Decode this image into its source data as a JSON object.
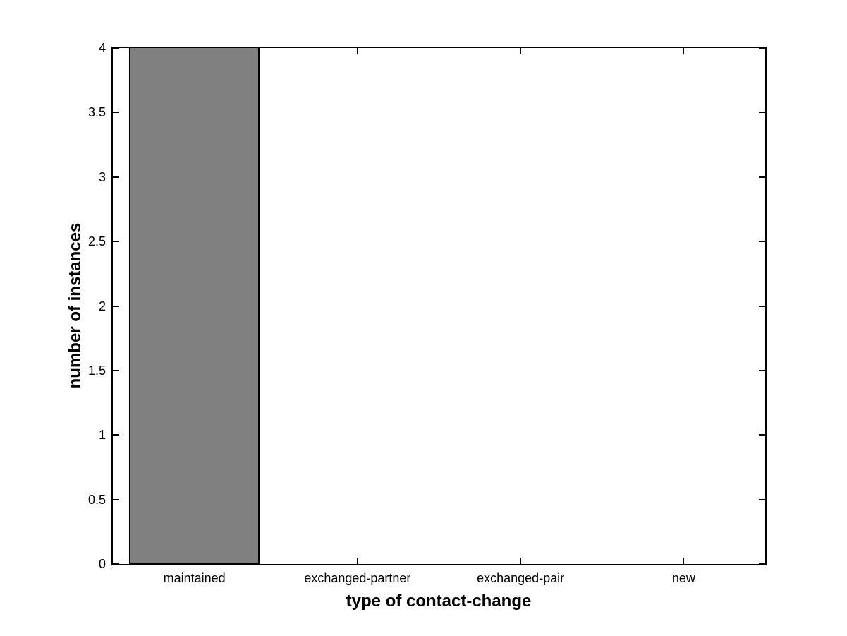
{
  "chart_data": {
    "type": "bar",
    "categories": [
      "maintained",
      "exchanged-partner",
      "exchanged-pair",
      "new"
    ],
    "values": [
      4,
      0,
      0,
      0
    ],
    "title": "",
    "xlabel": "type of contact-change",
    "ylabel": "number of instances",
    "ylim": [
      0,
      4
    ],
    "yticks": [
      0,
      0.5,
      1,
      1.5,
      2,
      2.5,
      3,
      3.5,
      4
    ],
    "ytick_labels": [
      "0",
      "0.5",
      "1",
      "1.5",
      "2",
      "2.5",
      "3",
      "3.5",
      "4"
    ],
    "bar_width_fraction": 0.8,
    "bar_color": "#808080",
    "bar_edge_color": "#000000",
    "axis_color": "#000000",
    "background_color": "#ffffff",
    "grid": false,
    "legend": null,
    "box": true,
    "ticks_mirrored": true
  }
}
